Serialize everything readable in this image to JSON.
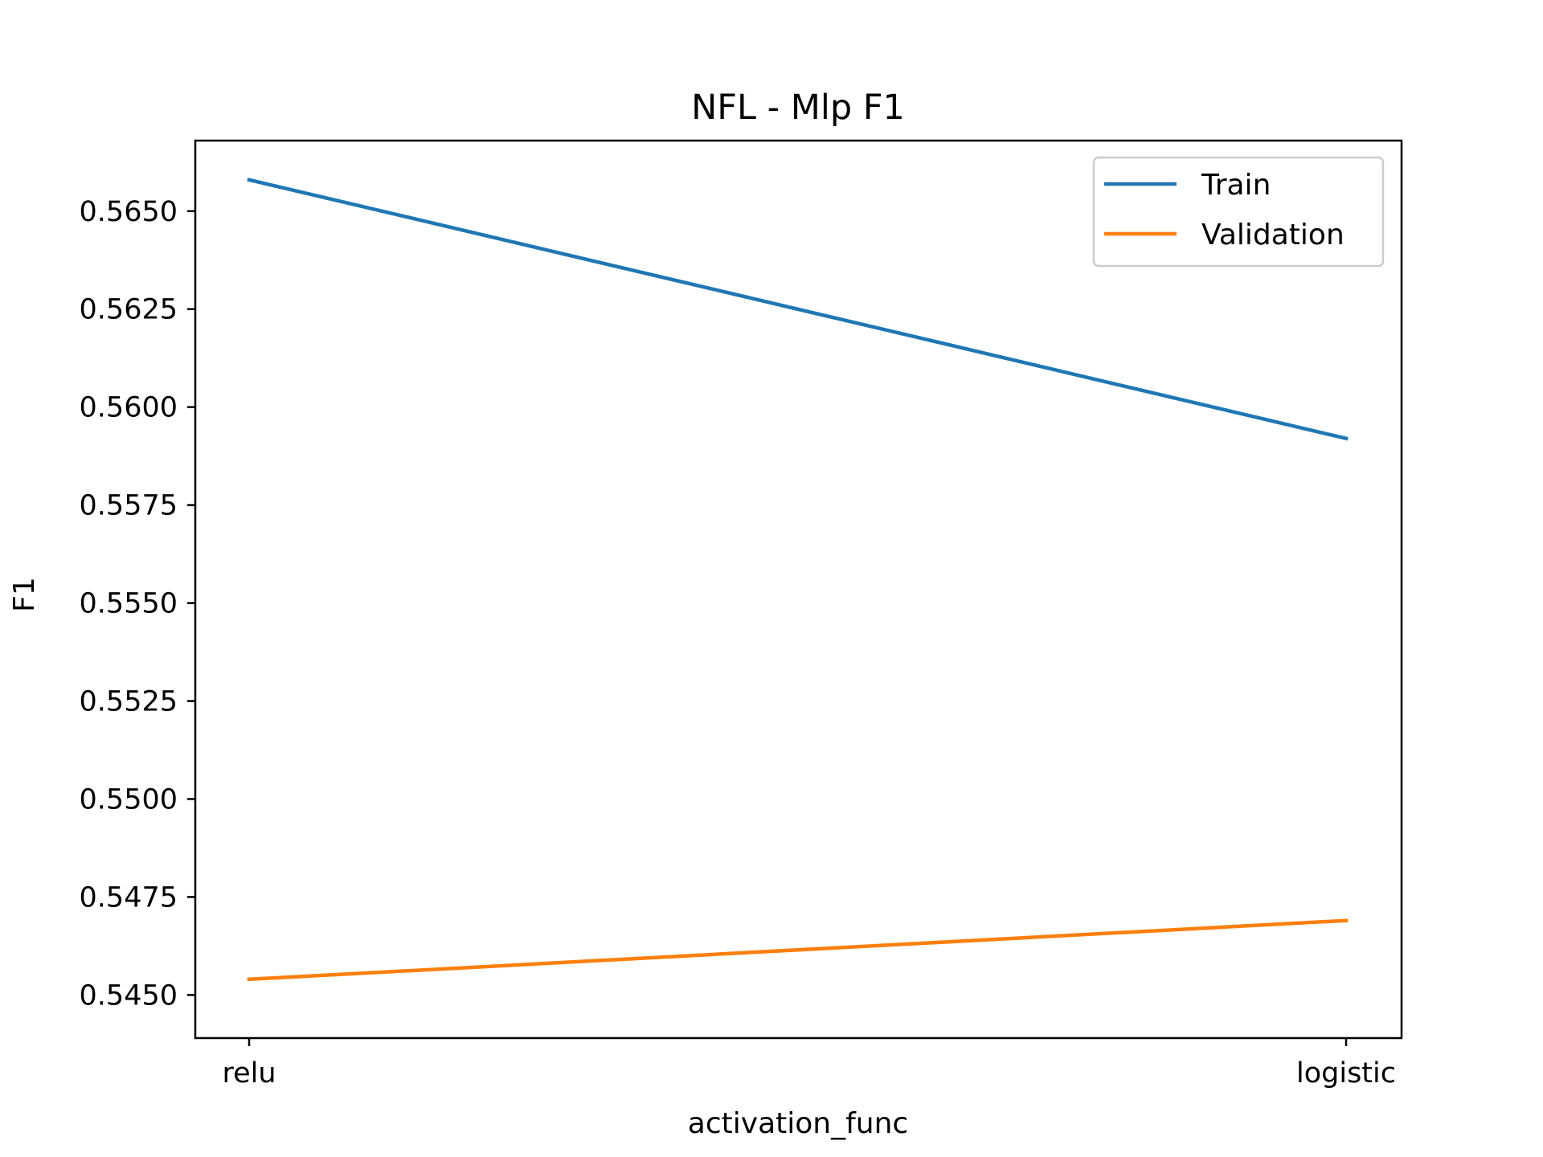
{
  "chart_data": {
    "type": "line",
    "title": "NFL - Mlp F1",
    "xlabel": "activation_func",
    "ylabel": "F1",
    "categories": [
      "relu",
      "logistic"
    ],
    "ylim": [
      0.5439,
      0.5668
    ],
    "yticks": [
      0.545,
      0.5475,
      0.55,
      0.5525,
      0.555,
      0.5575,
      0.56,
      0.5625,
      0.565
    ],
    "ytick_labels": [
      "0.5450",
      "0.5475",
      "0.5500",
      "0.5525",
      "0.5550",
      "0.5575",
      "0.5600",
      "0.5625",
      "0.5650"
    ],
    "grid": false,
    "legend_position": "top-right",
    "series": [
      {
        "name": "Train",
        "color": "#1f77b4",
        "values": [
          0.5658,
          0.5592
        ]
      },
      {
        "name": "Validation",
        "color": "#ff7f0e",
        "values": [
          0.5454,
          0.5469
        ]
      }
    ]
  }
}
